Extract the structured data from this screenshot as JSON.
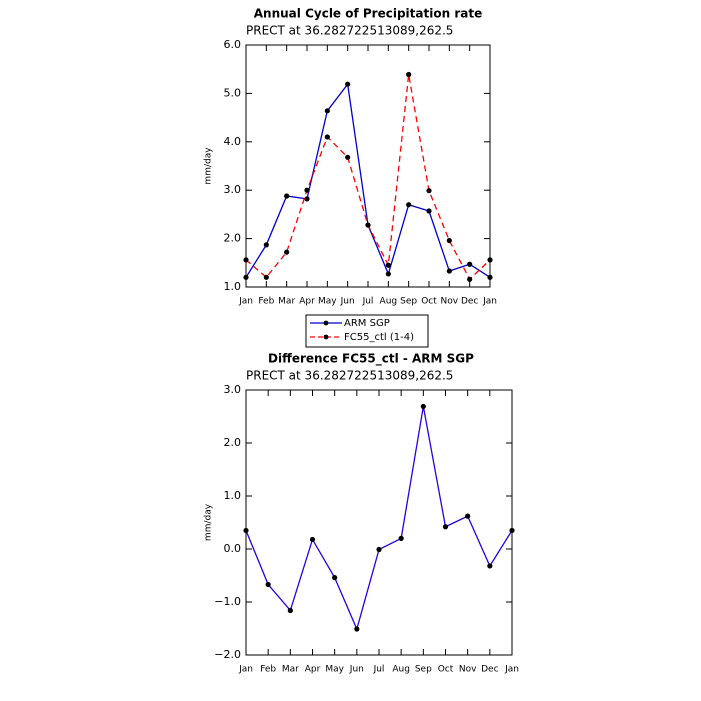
{
  "chart_data": [
    {
      "type": "line",
      "title": "Annual Cycle of Precipitation rate",
      "subtitle": "PRECT at 36.282722513089,262.5",
      "y_label": "mm/day",
      "categories": [
        "Jan",
        "Feb",
        "Mar",
        "Apr",
        "May",
        "Jun",
        "Jul",
        "Aug",
        "Sep",
        "Oct",
        "Nov",
        "Dec",
        "Jan"
      ],
      "series": [
        {
          "name": "ARM SGP",
          "color": "#0000cc",
          "linestyle": "solid",
          "values": [
            1.2,
            1.87,
            2.88,
            2.82,
            4.64,
            5.19,
            2.28,
            1.27,
            2.7,
            2.57,
            1.33,
            1.47,
            1.2
          ]
        },
        {
          "name": "FC55_ctl (1-4)",
          "color": "#ff0000",
          "linestyle": "dashed",
          "values": [
            1.56,
            1.2,
            1.72,
            3.0,
            4.1,
            3.68,
            2.28,
            1.45,
            5.39,
            2.99,
            1.96,
            1.16,
            1.56
          ]
        }
      ],
      "ylim": [
        1.0,
        6.0
      ],
      "yticks": [
        {
          "value": 1,
          "label": "1.0"
        },
        {
          "value": 2,
          "label": "2.0"
        },
        {
          "value": 3,
          "label": "3.0"
        },
        {
          "value": 4,
          "label": "4.0"
        },
        {
          "value": 5,
          "label": "5.0"
        },
        {
          "value": 6,
          "label": "6.0"
        }
      ],
      "legend": "bottom"
    },
    {
      "type": "line",
      "title": "Difference FC55_ctl - ARM SGP",
      "subtitle": "PRECT at 36.282722513089,262.5",
      "y_label": "mm/day",
      "categories": [
        "Jan",
        "Feb",
        "Mar",
        "Apr",
        "May",
        "Jun",
        "Jul",
        "Aug",
        "Sep",
        "Oct",
        "Nov",
        "Dec",
        "Jan"
      ],
      "series": [
        {
          "color": "#2a00dd",
          "linestyle": "solid",
          "values": [
            0.35,
            -0.67,
            -1.16,
            0.18,
            -0.54,
            -1.51,
            -0.01,
            0.2,
            2.69,
            0.42,
            0.62,
            -0.32,
            0.35
          ]
        }
      ],
      "ylim": [
        -2.0,
        3.0
      ],
      "yticks": [
        {
          "value": -2,
          "label": "−2.0"
        },
        {
          "value": -1,
          "label": "−1.0"
        },
        {
          "value": 0,
          "label": "0.0"
        },
        {
          "value": 1,
          "label": "1.0"
        },
        {
          "value": 2,
          "label": "2.0"
        },
        {
          "value": 3,
          "label": "3.0"
        }
      ]
    }
  ]
}
